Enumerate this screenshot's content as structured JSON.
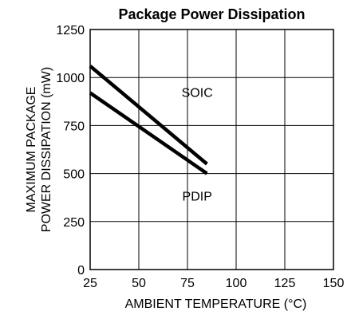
{
  "chart_data": {
    "type": "line",
    "title": "Package Power Dissipation",
    "xlabel": "AMBIENT TEMPERATURE (°C)",
    "ylabel_lines": [
      "MAXIMUM PACKAGE",
      "POWER DISSIPATION (mW)"
    ],
    "xlim": [
      25,
      150
    ],
    "ylim": [
      0,
      1250
    ],
    "xticks": [
      25,
      50,
      75,
      100,
      125,
      150
    ],
    "yticks": [
      0,
      250,
      500,
      750,
      1000,
      1250
    ],
    "grid": true,
    "series": [
      {
        "name": "SOIC",
        "x": [
          25,
          85
        ],
        "y": [
          1060,
          550
        ]
      },
      {
        "name": "PDIP",
        "x": [
          25,
          85
        ],
        "y": [
          920,
          500
        ]
      }
    ],
    "colors": {
      "line": "#000000",
      "grid": "#000000",
      "background": "#ffffff"
    }
  }
}
